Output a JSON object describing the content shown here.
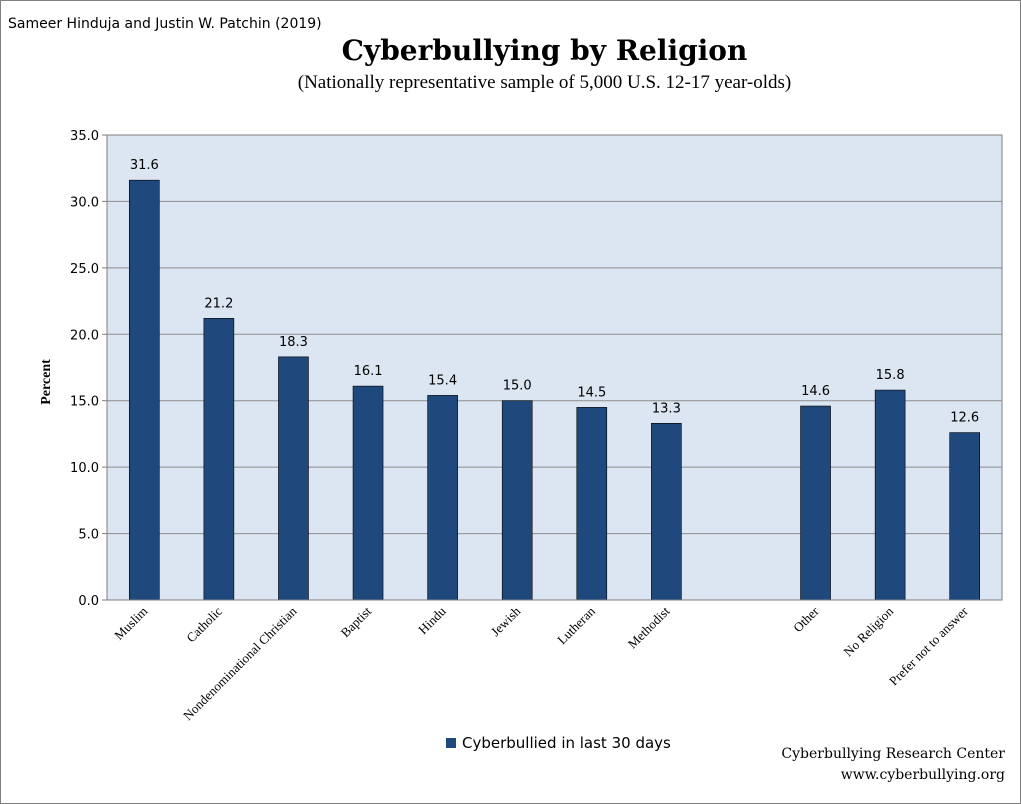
{
  "header": {
    "authors": "Sameer Hinduja and Justin W. Patchin (2019)"
  },
  "footer": {
    "source_line1": "Cyberbullying Research Center",
    "source_line2": "www.cyberbullying.org"
  },
  "colors": {
    "bar": "#1f497d",
    "plot_background": "#dce6f2"
  },
  "chart_data": {
    "type": "bar",
    "title": "Cyberbullying by Religion",
    "subtitle": "(Nationally representative sample of 5,000 U.S. 12-17 year-olds)",
    "xlabel": "",
    "ylabel": "Percent",
    "ylim": [
      0,
      35
    ],
    "yticks": [
      "0.0",
      "5.0",
      "10.0",
      "15.0",
      "20.0",
      "25.0",
      "30.0",
      "35.0"
    ],
    "grid": true,
    "legend_position": "bottom",
    "categories": [
      "Muslim",
      "Catholic",
      "Nondenominational Christian",
      "Baptist",
      "Hindu",
      "Jewish",
      "Lutheran",
      "Methodist",
      "",
      "Other",
      "No Religion",
      "Prefer not to answer"
    ],
    "series": [
      {
        "name": "Cyberbullied in last 30 days",
        "values": [
          31.6,
          21.2,
          18.3,
          16.1,
          15.4,
          15.0,
          14.5,
          13.3,
          null,
          14.6,
          15.8,
          12.6
        ],
        "labels": [
          "31.6",
          "21.2",
          "18.3",
          "16.1",
          "15.4",
          "15.0",
          "14.5",
          "13.3",
          "",
          "14.6",
          "15.8",
          "12.6"
        ]
      }
    ]
  }
}
